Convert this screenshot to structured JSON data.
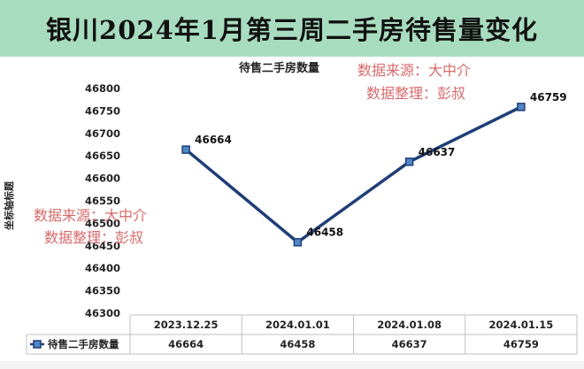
{
  "banner": {
    "title": "银川2024年1月第三周二手房待售量变化"
  },
  "watermarks": [
    {
      "line1": "数据来源：大中介",
      "line2": "数据整理：彭叔"
    },
    {
      "line1": "数据来源：大中介",
      "line2": "数据整理：彭叔"
    }
  ],
  "chart_data": {
    "type": "line",
    "title": "待售二手房数量",
    "ylabel": "坐标轴标题",
    "xlabel": "",
    "categories": [
      "2023.12.25",
      "2024.01.01",
      "2024.01.08",
      "2024.01.15"
    ],
    "series": [
      {
        "name": "待售二手房数量",
        "values": [
          46664,
          46458,
          46637,
          46759
        ],
        "color": "#1f3e77"
      }
    ],
    "ylim": [
      46300,
      46800
    ],
    "yticks": [
      46800,
      46750,
      46700,
      46650,
      46600,
      46550,
      46500,
      46450,
      46400,
      46350,
      46300
    ],
    "grid": false,
    "data_labels": true,
    "data_table": true,
    "colors": {
      "banner_bg": "#a8dcc0",
      "line": "#1f3e77",
      "marker_fill": "#4f86c6",
      "watermark": "#d86a6a"
    }
  }
}
